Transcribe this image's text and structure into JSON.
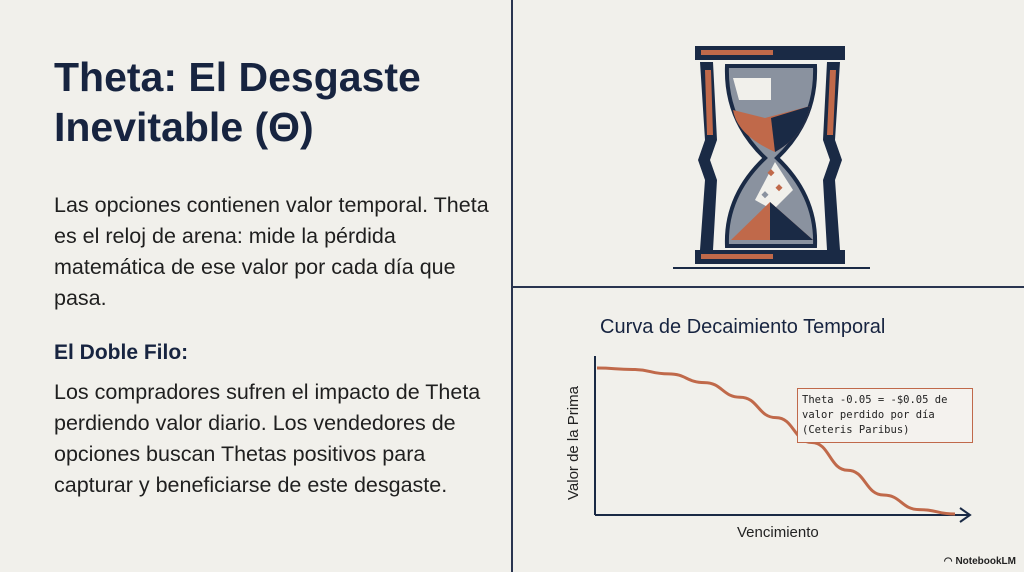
{
  "slide": {
    "title": "Theta: El Desgaste Inevitable (Θ)",
    "intro": "Las opciones contienen valor temporal. Theta es el reloj de arena: mide la pérdida matemática de ese valor por cada día que pasa.",
    "subheading": "El Doble Filo:",
    "detail": "Los compradores sufren el impacto de Theta perdiendo valor diario. Los vendedores de opciones buscan Thetas positivos para capturar y beneficiarse de este desgaste."
  },
  "illustration": {
    "icon": "hourglass-icon"
  },
  "colors": {
    "background": "#f1f0eb",
    "navy": "#1a2a45",
    "accent": "#c0694a"
  },
  "chart_data": {
    "type": "line",
    "title": "Curva de Decaimiento Temporal",
    "xlabel": "Vencimiento",
    "ylabel": "Valor de la Prima",
    "grid": false,
    "series": [
      {
        "x": [
          0,
          10,
          20,
          30,
          40,
          50,
          60,
          70,
          80,
          90,
          100
        ],
        "y": [
          100,
          99,
          96,
          90,
          80,
          66,
          49,
          30,
          13,
          3,
          0
        ]
      }
    ],
    "annotation": {
      "lines": [
        "Theta -0.05 = -$0.05 de",
        "valor perdido por día",
        "(Ceteris Paribus)"
      ]
    }
  },
  "branding": {
    "label": "NotebookLM"
  }
}
